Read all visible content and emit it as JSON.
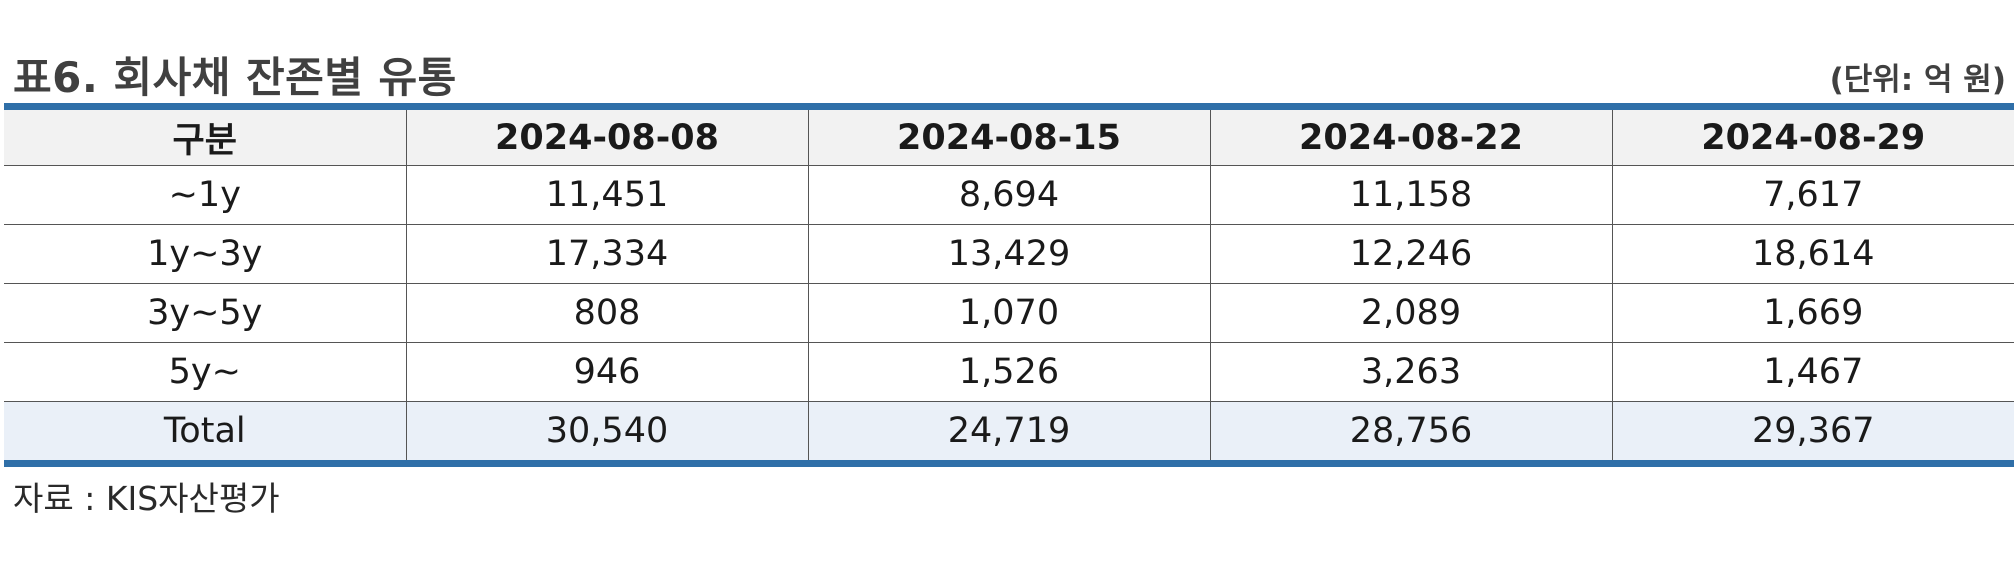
{
  "title": "표6. 회사채 잔존별 유통",
  "unit": "(단위: 억 원)",
  "table": {
    "headers": [
      "구분",
      "2024-08-08",
      "2024-08-15",
      "2024-08-22",
      "2024-08-29"
    ],
    "rows": [
      [
        "~1y",
        "11,451",
        "8,694",
        "11,158",
        "7,617"
      ],
      [
        "1y~3y",
        "17,334",
        "13,429",
        "12,246",
        "18,614"
      ],
      [
        "3y~5y",
        "808",
        "1,070",
        "2,089",
        "1,669"
      ],
      [
        "5y~",
        "946",
        "1,526",
        "3,263",
        "1,467"
      ],
      [
        "Total",
        "30,540",
        "24,719",
        "28,756",
        "29,367"
      ]
    ]
  },
  "source": "자료 : KIS자산평가",
  "colors": {
    "rule": "#2f6fa8",
    "header_bg": "#f2f2f2",
    "total_bg": "#eaf0f8"
  }
}
